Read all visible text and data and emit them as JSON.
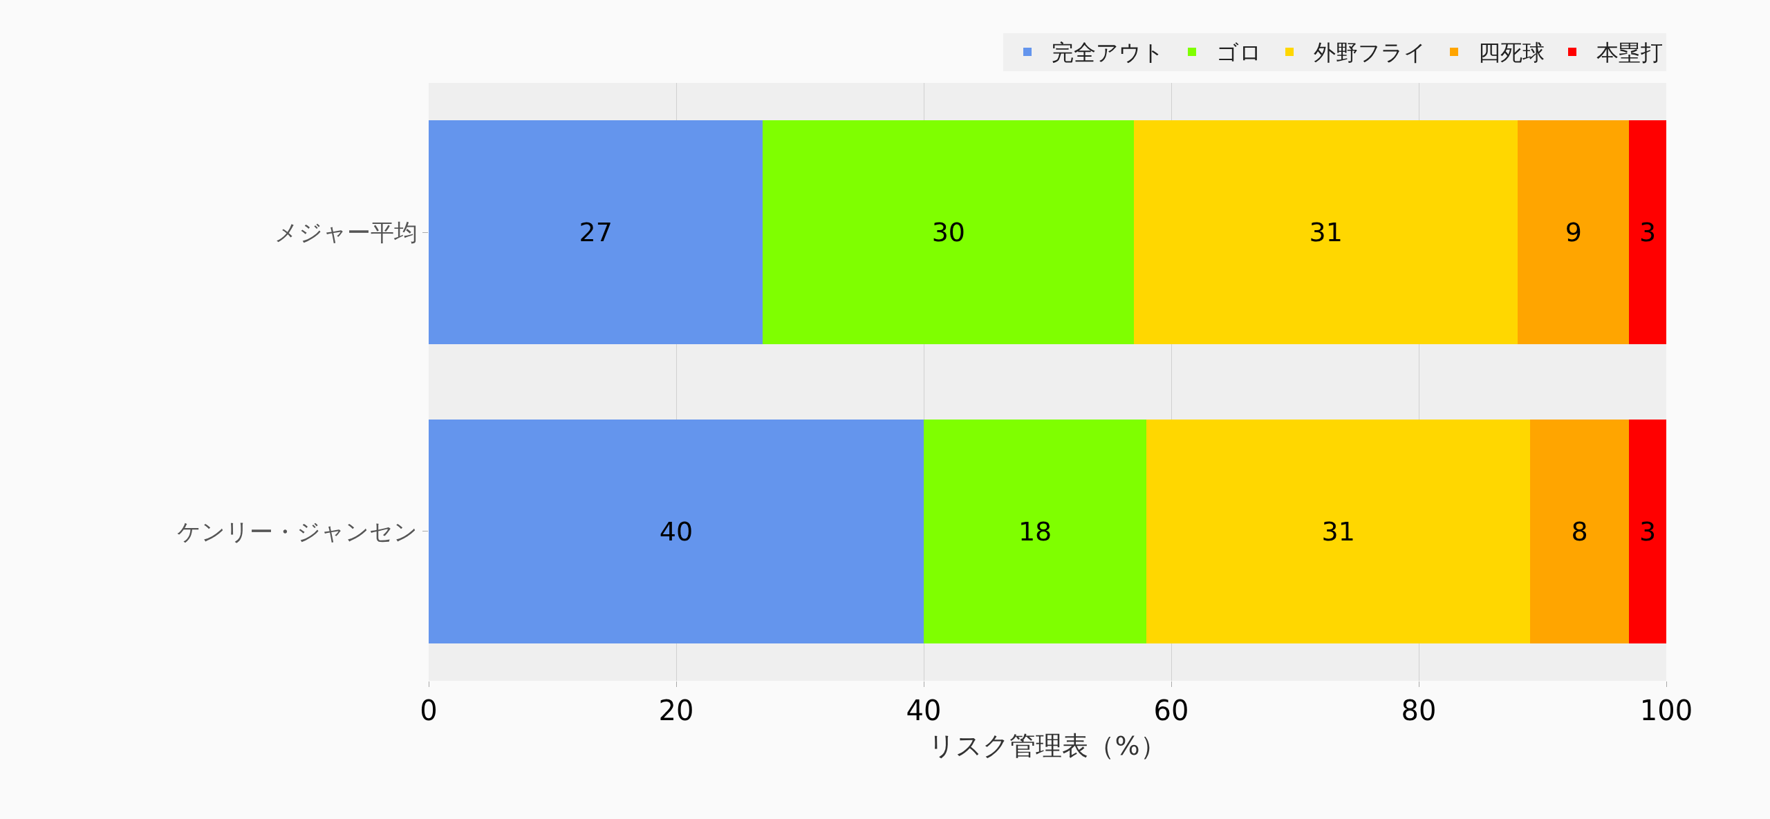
{
  "chart_data": {
    "type": "bar",
    "orientation": "horizontal",
    "stacked": true,
    "data_labels": true,
    "xlabel": "リスク管理表（%）",
    "categories": [
      "メジャー平均",
      "ケンリー・ジャンセン"
    ],
    "series": [
      {
        "name": "完全アウト",
        "color": "#6495ed",
        "values": [
          27,
          40
        ]
      },
      {
        "name": "ゴロ",
        "color": "#7fff00",
        "values": [
          30,
          18
        ]
      },
      {
        "name": "外野フライ",
        "color": "#ffd700",
        "values": [
          31,
          31
        ]
      },
      {
        "name": "四死球",
        "color": "#ffa500",
        "values": [
          9,
          8
        ]
      },
      {
        "name": "本塁打",
        "color": "#ff0000",
        "values": [
          3,
          3
        ]
      }
    ],
    "xlim": [
      0,
      100
    ],
    "xticks": [
      0,
      20,
      40,
      60,
      80,
      100
    ],
    "grid": "x",
    "legend": "top"
  }
}
